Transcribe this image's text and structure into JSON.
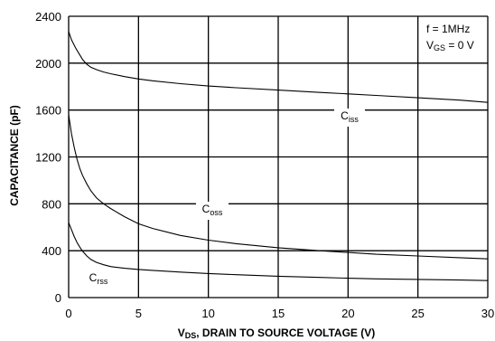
{
  "chart_data": {
    "type": "line",
    "xlabel": {
      "prefix": "V",
      "sub": "DS",
      "text": ", DRAIN TO SOURCE VOLTAGE (V)"
    },
    "ylabel": "CAPACITANCE (pF)",
    "xlim": [
      0,
      30
    ],
    "ylim": [
      0,
      2400
    ],
    "xticks": [
      "0",
      "5",
      "10",
      "15",
      "20",
      "25",
      "30"
    ],
    "yticks": [
      "0",
      "400",
      "800",
      "1200",
      "1600",
      "2000",
      "2400"
    ],
    "xtick_values": [
      0,
      5,
      10,
      15,
      20,
      25,
      30
    ],
    "ytick_values": [
      0,
      400,
      800,
      1200,
      1600,
      2000,
      2400
    ],
    "grid": true,
    "conditions": {
      "line1": "f = 1MHz",
      "line2": {
        "prefix": "V",
        "sub": "GS",
        "text": " = 0 V"
      }
    },
    "series": [
      {
        "name": {
          "prefix": "C",
          "sub": "iss"
        },
        "x": [
          0,
          0.2,
          0.5,
          0.8,
          1.0,
          1.3,
          1.6,
          2.0,
          2.5,
          3,
          4,
          5,
          6,
          8,
          10,
          12,
          15,
          18,
          20,
          22,
          25,
          28,
          30
        ],
        "y": [
          2270,
          2200,
          2130,
          2070,
          2030,
          1990,
          1965,
          1945,
          1925,
          1910,
          1885,
          1865,
          1850,
          1825,
          1805,
          1790,
          1770,
          1750,
          1738,
          1725,
          1705,
          1685,
          1665
        ]
      },
      {
        "name": {
          "prefix": "C",
          "sub": "oss"
        },
        "x": [
          0,
          0.2,
          0.4,
          0.6,
          0.8,
          1.0,
          1.3,
          1.6,
          2.0,
          2.5,
          3,
          4,
          5,
          6,
          8,
          10,
          12,
          15,
          18,
          20,
          22,
          25,
          28,
          30
        ],
        "y": [
          1560,
          1400,
          1280,
          1180,
          1100,
          1040,
          970,
          910,
          850,
          800,
          760,
          690,
          630,
          590,
          530,
          490,
          460,
          425,
          400,
          385,
          370,
          355,
          340,
          330
        ]
      },
      {
        "name": {
          "prefix": "C",
          "sub": "rss"
        },
        "x": [
          0,
          0.2,
          0.4,
          0.6,
          0.8,
          1.0,
          1.3,
          1.6,
          2.0,
          2.5,
          3,
          4,
          5,
          6,
          8,
          10,
          12,
          15,
          18,
          20,
          22,
          25,
          28,
          30
        ],
        "y": [
          640,
          580,
          520,
          470,
          430,
          395,
          355,
          325,
          300,
          280,
          265,
          250,
          240,
          232,
          218,
          205,
          195,
          182,
          172,
          165,
          160,
          155,
          150,
          145
        ]
      }
    ]
  }
}
